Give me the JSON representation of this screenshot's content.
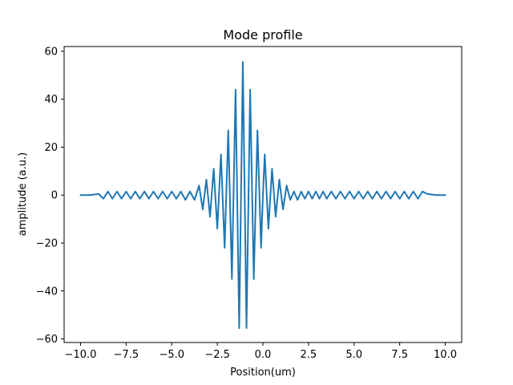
{
  "chart_data": {
    "type": "line",
    "title": "Mode profile",
    "xlabel": "Position(um)",
    "ylabel": "amplitude (a.u.)",
    "xlim": [
      -10.9,
      10.9
    ],
    "ylim": [
      -61.5,
      62
    ],
    "x_ticks": [
      -10.0,
      -7.5,
      -5.0,
      -2.5,
      0.0,
      2.5,
      5.0,
      7.5,
      10.0
    ],
    "x_tick_labels": [
      "−10.0",
      "−7.5",
      "−5.0",
      "−2.5",
      "0.0",
      "2.5",
      "5.0",
      "7.5",
      "10.0"
    ],
    "y_ticks": [
      -60,
      -40,
      -20,
      0,
      20,
      40,
      60
    ],
    "y_tick_labels": [
      "−60",
      "−40",
      "−20",
      "0",
      "20",
      "40",
      "60"
    ],
    "grid": false,
    "series": [
      {
        "color": "#1f77b4",
        "x": [
          -10,
          -9.5,
          -9,
          -8.75,
          -8.5,
          -8.25,
          -8,
          -7.75,
          -7.5,
          -7.25,
          -7,
          -6.75,
          -6.5,
          -6.25,
          -6,
          -5.75,
          -5.5,
          -5.25,
          -5,
          -4.75,
          -4.5,
          -4.25,
          -4,
          -3.75,
          -3.5,
          -3.3,
          -3.1,
          -2.9,
          -2.7,
          -2.5,
          -2.3,
          -2.1,
          -1.9,
          -1.7,
          -1.5,
          -1.3,
          -1.1,
          -0.9,
          -0.7,
          -0.5,
          -0.3,
          -0.1,
          0,
          0.1,
          0.3,
          0.5,
          0.7,
          0.9,
          1.1,
          1.3,
          1.5,
          1.7,
          1.9,
          2.1,
          2.3,
          2.5,
          2.7,
          2.9,
          3.1,
          3.3,
          3.5,
          3.75,
          4,
          4.25,
          4.5,
          4.75,
          5,
          5.25,
          5.5,
          5.75,
          6,
          6.25,
          6.5,
          6.75,
          7,
          7.25,
          7.5,
          7.75,
          8,
          8.25,
          8.5,
          8.75,
          9,
          9.5,
          10
        ],
        "y": [
          0,
          0,
          0.5,
          -1.5,
          1.5,
          -1.5,
          1.5,
          -1.5,
          1.5,
          -1.5,
          1.5,
          -1.5,
          1.5,
          -1.5,
          1.5,
          -1.5,
          1.5,
          -1.5,
          1.5,
          -1.5,
          1.5,
          -2,
          1.5,
          -2,
          4,
          -6,
          6.5,
          -9,
          11,
          -14,
          17,
          -22,
          27,
          -35,
          44,
          -55.5,
          55.5,
          -55.5,
          44,
          -35,
          27,
          -22,
          0,
          17,
          -14,
          11,
          -9,
          6.5,
          -6,
          4,
          -2,
          1.5,
          -2,
          1.5,
          -1.5,
          1.5,
          -1.5,
          1.5,
          -1.5,
          1.5,
          -1.5,
          1.5,
          -1.5,
          1.5,
          -1.5,
          1.5,
          -1.5,
          1.5,
          -1.5,
          1.5,
          -1.5,
          1.5,
          -1.5,
          1.5,
          -1.5,
          1.5,
          -1.5,
          1.5,
          -1.5,
          1.5,
          -1.5,
          1.5,
          0.5,
          0,
          0
        ]
      }
    ]
  }
}
